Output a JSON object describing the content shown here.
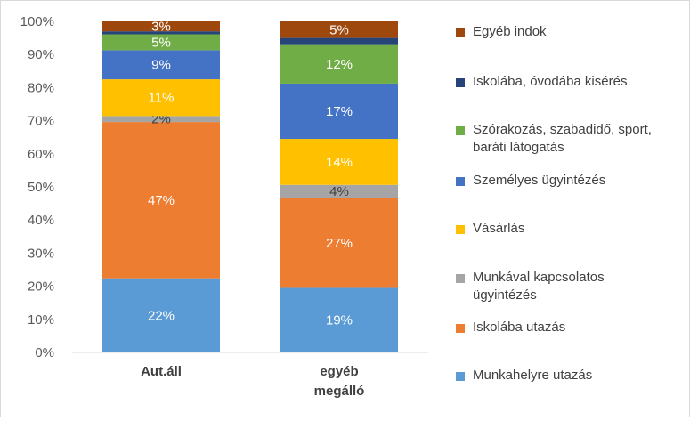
{
  "chart_data": {
    "type": "bar",
    "stacked": true,
    "percent_stacked": true,
    "categories": [
      "Aut.áll",
      "egyéb megálló"
    ],
    "yticks": [
      "0%",
      "10%",
      "20%",
      "30%",
      "40%",
      "50%",
      "60%",
      "70%",
      "80%",
      "90%",
      "100%"
    ],
    "ylim": [
      0,
      100
    ],
    "grid": false,
    "legend_position": "right",
    "series": [
      {
        "name": "Munkahelyre utazás",
        "color": "#5b9bd5",
        "values": [
          22.4,
          19.5
        ],
        "labels": [
          "22%",
          "19%"
        ]
      },
      {
        "name": "Iskolába utazás",
        "color": "#ed7d31",
        "values": [
          47.2,
          27.1
        ],
        "labels": [
          "47%",
          "27%"
        ]
      },
      {
        "name": "Munkával kapcsolatos ügyintézés",
        "color": "#a5a5a5",
        "values": [
          1.8,
          4.0
        ],
        "labels": [
          "2%",
          "4%"
        ]
      },
      {
        "name": "Vásárlás",
        "color": "#ffc000",
        "values": [
          11.1,
          13.9
        ],
        "labels": [
          "11%",
          "14%"
        ]
      },
      {
        "name": "Személyes ügyintézés",
        "color": "#4472c4",
        "values": [
          8.8,
          16.7
        ],
        "labels": [
          "9%",
          "17%"
        ]
      },
      {
        "name": "Szórakozás, szabadidő, sport, baráti látogatás",
        "color": "#70ad47",
        "values": [
          4.8,
          11.9
        ],
        "labels": [
          "5%",
          "12%"
        ]
      },
      {
        "name": "Iskolába, óvodába kisérés",
        "color": "#264478",
        "values": [
          0.9,
          1.9
        ],
        "labels": [
          "",
          ""
        ]
      },
      {
        "name": "Egyéb indok",
        "color": "#9e480e",
        "values": [
          3.0,
          5.0
        ],
        "labels": [
          "3%",
          "5%"
        ]
      }
    ]
  },
  "category_labels": [
    "Aut.áll",
    "egyéb\nmegálló"
  ],
  "legend": [
    {
      "label": "Egyéb indok",
      "color": "#9e480e"
    },
    {
      "label": "Iskolába, óvodába kisérés",
      "color": "#264478"
    },
    {
      "label": "Szórakozás, szabadidő, sport,\nbaráti látogatás",
      "color": "#70ad47"
    },
    {
      "label": "Személyes ügyintézés",
      "color": "#4472c4"
    },
    {
      "label": "Vásárlás",
      "color": "#ffc000"
    },
    {
      "label": "Munkával kapcsolatos\nügyintézés",
      "color": "#a5a5a5"
    },
    {
      "label": "Iskolába utazás",
      "color": "#ed7d31"
    },
    {
      "label": "Munkahelyre utazás",
      "color": "#5b9bd5"
    }
  ]
}
